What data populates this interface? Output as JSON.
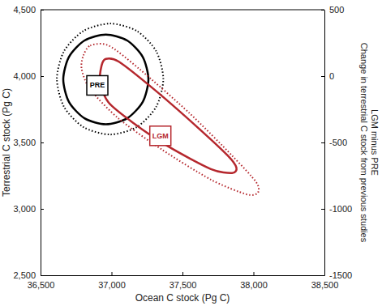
{
  "chart_data": {
    "type": "contour",
    "xlabel": "Ocean C stock (Pg C)",
    "ylabel": "Terrestrial C stock (Pg C)",
    "y2label": [
      "Change in terrestrial C stock from previous studies",
      "LGM minus PRE"
    ],
    "xlim": [
      36500,
      38500
    ],
    "xticks": [
      {
        "value": 36500,
        "label": "36,500"
      },
      {
        "value": 37000,
        "label": "37,000"
      },
      {
        "value": 37500,
        "label": "37,500"
      },
      {
        "value": 38000,
        "label": "38,000"
      },
      {
        "value": 38500,
        "label": "38,500"
      }
    ],
    "ylim": [
      2500,
      4500
    ],
    "yticks": [
      {
        "value": 2500,
        "label": "2,500"
      },
      {
        "value": 3000,
        "label": "3,000"
      },
      {
        "value": 3500,
        "label": "3,500"
      },
      {
        "value": 4000,
        "label": "4,000"
      },
      {
        "value": 4500,
        "label": "4,500"
      }
    ],
    "y2lim": [
      -1500,
      500
    ],
    "y2ticks": [
      -1500,
      -1000,
      -500,
      0,
      500
    ],
    "series": [
      {
        "color": "#000000",
        "line_style": "solid",
        "x": [
          37260,
          37220,
          37110,
          36960,
          36810,
          36700,
          36660,
          36700,
          36810,
          36960,
          37110,
          37220
        ],
        "y": [
          3975,
          4144,
          4268,
          4313,
          4268,
          4144,
          3975,
          3806,
          3682,
          3637,
          3682,
          3806
        ]
      },
      {
        "color": "#000000",
        "line_style": "dotted",
        "x": [
          37365,
          37315,
          37178,
          36990,
          36802,
          36665,
          36615,
          36665,
          36802,
          36990,
          37178,
          37315
        ],
        "y": [
          3978,
          4187,
          4340,
          4396,
          4340,
          4187,
          3978,
          3769,
          3616,
          3560,
          3616,
          3769
        ]
      },
      {
        "color": "#b5272d",
        "line_style": "solid",
        "x": [
          36930,
          36960,
          37050,
          37300,
          37600,
          37820,
          37880,
          37850,
          37700,
          37400,
          37150,
          36980,
          36920
        ],
        "y": [
          4080,
          4130,
          4110,
          3900,
          3620,
          3400,
          3310,
          3270,
          3300,
          3470,
          3650,
          3800,
          3950
        ]
      },
      {
        "color": "#b5272d",
        "line_style": "dotted",
        "x": [
          36800,
          36850,
          36980,
          37200,
          37550,
          37850,
          38020,
          38030,
          37950,
          37700,
          37350,
          37050,
          36850,
          36790
        ],
        "y": [
          4150,
          4230,
          4230,
          4050,
          3720,
          3400,
          3200,
          3120,
          3110,
          3220,
          3450,
          3680,
          3900,
          4050
        ]
      }
    ],
    "annotations": [
      {
        "text": "PRE",
        "x": 36900,
        "y": 3930,
        "color": "#000000"
      },
      {
        "text": "LGM",
        "x": 37344,
        "y": 3550,
        "color": "#b5272d"
      }
    ]
  }
}
